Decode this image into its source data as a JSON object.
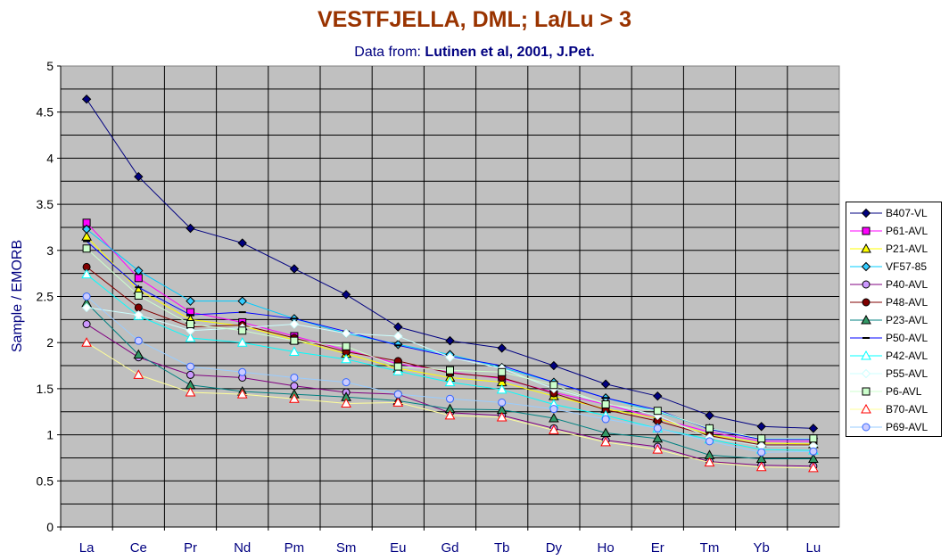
{
  "chart_data": {
    "type": "line",
    "title": "VESTFJELLA, DML; La/Lu > 3",
    "subtitle_prefix": "Data from:",
    "subtitle_source": "Lutinen et al, 2001, J.Pet.",
    "xlabel": "",
    "ylabel": "Sample / EMORB",
    "ylim": [
      0,
      5
    ],
    "ytick_labels": [
      "0",
      "0.5",
      "1",
      "1.5",
      "2",
      "2.5",
      "3",
      "3.5",
      "4",
      "4.5",
      "5"
    ],
    "categories": [
      "La",
      "Ce",
      "Pr",
      "Nd",
      "Pm",
      "Sm",
      "Eu",
      "Gd",
      "Tb",
      "Dy",
      "Ho",
      "Er",
      "Tm",
      "Yb",
      "Lu"
    ],
    "grid": true,
    "legend_position": "right",
    "series": [
      {
        "name": "B407-VL",
        "color": "#000080",
        "marker": "diamond",
        "fill": "#000080",
        "values": [
          4.64,
          3.8,
          3.24,
          3.08,
          2.8,
          2.52,
          2.17,
          2.02,
          1.94,
          1.75,
          1.55,
          1.42,
          1.21,
          1.09,
          1.07
        ]
      },
      {
        "name": "P61-AVL",
        "color": "#FF00FF",
        "marker": "square",
        "fill": "#FF00FF",
        "values": [
          3.3,
          2.7,
          2.33,
          2.22,
          2.07,
          1.92,
          1.77,
          1.68,
          1.61,
          1.46,
          1.33,
          1.18,
          1.03,
          0.93,
          0.93
        ]
      },
      {
        "name": "P21-AVL",
        "color": "#FFFF00",
        "marker": "triangle",
        "fill": "#FFFF00",
        "values": [
          3.15,
          2.57,
          2.25,
          2.18,
          2.03,
          1.88,
          1.72,
          1.62,
          1.57,
          1.42,
          1.28,
          1.18,
          1.0,
          0.91,
          0.9
        ]
      },
      {
        "name": "VF57-85",
        "color": "#00CCFF",
        "marker": "diamond",
        "fill": "#33CCFF",
        "values": [
          3.23,
          2.78,
          2.45,
          2.45,
          2.26,
          2.1,
          1.98,
          1.87,
          1.73,
          1.57,
          1.4,
          1.25,
          1.07,
          0.96,
          0.96
        ]
      },
      {
        "name": "P40-AVL",
        "color": "#800080",
        "marker": "circle",
        "fill": "#CC99FF",
        "values": [
          2.2,
          1.84,
          1.65,
          1.62,
          1.53,
          1.46,
          1.44,
          1.24,
          1.21,
          1.07,
          0.94,
          0.87,
          0.71,
          0.67,
          0.66
        ]
      },
      {
        "name": "P48-AVL",
        "color": "#800000",
        "marker": "circle",
        "fill": "#800000",
        "values": [
          2.82,
          2.38,
          2.17,
          2.19,
          2.05,
          1.9,
          1.8,
          1.67,
          1.62,
          1.45,
          1.27,
          1.15,
          0.99,
          0.89,
          0.89
        ]
      },
      {
        "name": "P23-AVL",
        "color": "#008080",
        "marker": "triangle",
        "fill": "#339966",
        "values": [
          2.43,
          1.87,
          1.54,
          1.47,
          1.44,
          1.41,
          1.37,
          1.28,
          1.27,
          1.18,
          1.02,
          0.96,
          0.78,
          0.74,
          0.74
        ]
      },
      {
        "name": "P50-AVL",
        "color": "#0000FF",
        "marker": "dash",
        "fill": "#0000FF",
        "values": [
          3.1,
          2.6,
          2.3,
          2.33,
          2.26,
          2.12,
          1.97,
          1.85,
          1.75,
          1.57,
          1.4,
          1.27,
          1.06,
          0.95,
          0.95
        ]
      },
      {
        "name": "P42-AVL",
        "color": "#00FFFF",
        "marker": "triangle",
        "fill": "#FFFFFF",
        "values": [
          2.74,
          2.29,
          2.05,
          2.0,
          1.9,
          1.82,
          1.69,
          1.57,
          1.49,
          1.33,
          1.21,
          1.07,
          0.95,
          0.84,
          0.83
        ]
      },
      {
        "name": "P55-AVL",
        "color": "#CCFFFF",
        "marker": "diamond",
        "fill": "#FFFFFF",
        "values": [
          2.38,
          2.3,
          2.13,
          2.16,
          2.2,
          2.1,
          2.07,
          1.84,
          1.72,
          1.5,
          1.34,
          1.21,
          0.97,
          0.88,
          0.88
        ]
      },
      {
        "name": "P6-AVL",
        "color": "#CCFFCC",
        "marker": "square",
        "fill": "#CCFFCC",
        "values": [
          3.02,
          2.51,
          2.2,
          2.13,
          2.02,
          1.96,
          1.74,
          1.7,
          1.68,
          1.54,
          1.33,
          1.26,
          1.07,
          0.96,
          0.96
        ]
      },
      {
        "name": "B70-AVL",
        "color": "#FFFF99",
        "marker": "triangle",
        "fill": "#FFFFFF",
        "stroke": "#FF0000",
        "values": [
          2.0,
          1.65,
          1.46,
          1.44,
          1.39,
          1.34,
          1.35,
          1.21,
          1.19,
          1.05,
          0.92,
          0.84,
          0.7,
          0.65,
          0.64
        ]
      },
      {
        "name": "P69-AVL",
        "color": "#99CCFF",
        "marker": "circle",
        "fill": "#CCCCFF",
        "stroke": "#3366FF",
        "values": [
          2.5,
          2.02,
          1.74,
          1.68,
          1.62,
          1.57,
          1.44,
          1.39,
          1.35,
          1.28,
          1.17,
          1.07,
          0.93,
          0.81,
          0.82
        ]
      }
    ]
  }
}
